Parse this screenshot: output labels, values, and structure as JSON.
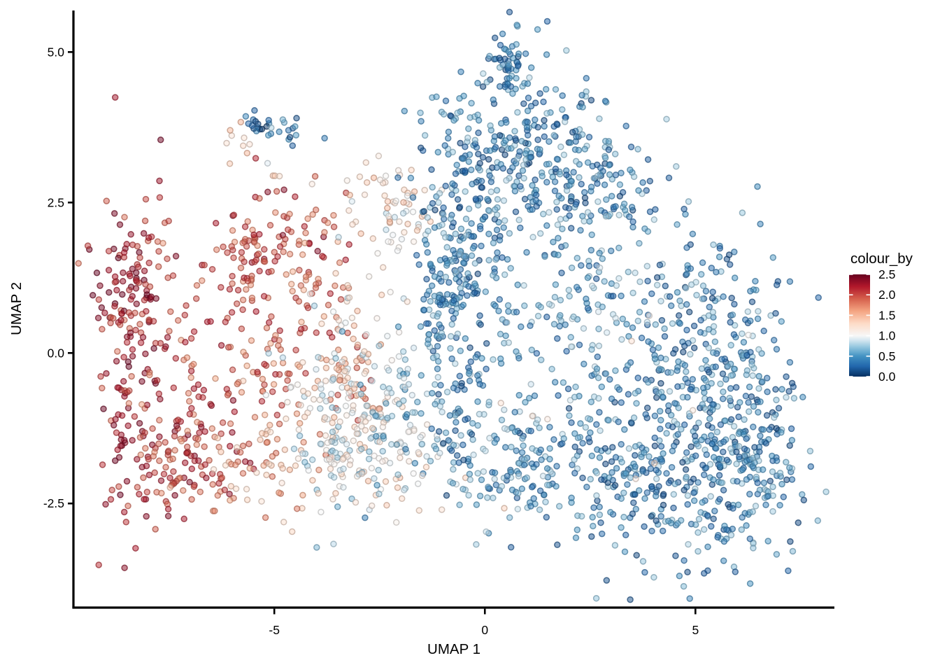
{
  "figure": {
    "background": "#ffffff",
    "plot_type_note": "UMAP dimensionality-reduction scatter plot coloured by continuous expression value"
  },
  "chart_data": {
    "type": "scatter",
    "title": "",
    "xlabel": "UMAP 1",
    "ylabel": "UMAP 2",
    "xlim": [
      -9.77,
      8.3
    ],
    "ylim": [
      -4.23,
      5.69
    ],
    "grid": false,
    "x_ticks": [
      {
        "value": -5,
        "label": "-5"
      },
      {
        "value": 0,
        "label": "0"
      },
      {
        "value": 5,
        "label": "5"
      }
    ],
    "y_ticks": [
      {
        "value": 5.0,
        "label": "5.0"
      },
      {
        "value": 2.5,
        "label": "2.5"
      },
      {
        "value": 0.0,
        "label": "0.0"
      },
      {
        "value": -2.5,
        "label": "-2.5"
      }
    ],
    "legend": {
      "title": "colour_by",
      "position": "right",
      "min": 0.0,
      "max": 2.5,
      "ticks": [
        {
          "value": 2.5,
          "label": "2.5"
        },
        {
          "value": 2.0,
          "label": "2.0"
        },
        {
          "value": 1.5,
          "label": "1.5"
        },
        {
          "value": 1.0,
          "label": "1.0"
        },
        {
          "value": 0.5,
          "label": "0.5"
        },
        {
          "value": 0.0,
          "label": "0.0"
        }
      ]
    },
    "colormap": {
      "name": "RdBu-reversed (high=red, low=blue)",
      "stops": [
        {
          "v": 0.0,
          "c": "#053061"
        },
        {
          "v": 0.25,
          "c": "#2166ac"
        },
        {
          "v": 0.5,
          "c": "#4393c3"
        },
        {
          "v": 0.72,
          "c": "#92c5de"
        },
        {
          "v": 0.88,
          "c": "#d1e5f0"
        },
        {
          "v": 1.0,
          "c": "#f7f7f7"
        },
        {
          "v": 1.3,
          "c": "#fddbc7"
        },
        {
          "v": 1.6,
          "c": "#f4a582"
        },
        {
          "v": 1.9,
          "c": "#d6604d"
        },
        {
          "v": 2.2,
          "c": "#b2182b"
        },
        {
          "v": 2.5,
          "c": "#67001f"
        }
      ]
    },
    "point_style": {
      "radius": 4.0,
      "fill_opacity": 0.5,
      "stroke_opacity": 0.7,
      "stroke_width": 1.5,
      "stroke_darken": 0.75
    },
    "seed": 7,
    "clusters": [
      {
        "name": "red-left-column",
        "n": 130,
        "cx": -8.35,
        "cy": -0.2,
        "sx": 0.5,
        "sy": 1.45,
        "vmin": 1.8,
        "vmax": 2.5
      },
      {
        "name": "red-bottom-arc",
        "n": 115,
        "cx": -7.3,
        "cy": -1.75,
        "sx": 0.85,
        "sy": 0.5,
        "vmin": 1.7,
        "vmax": 2.4
      },
      {
        "name": "red-upper-hook",
        "n": 60,
        "cx": -8.25,
        "cy": 1.3,
        "sx": 0.45,
        "sy": 0.5,
        "vmin": 1.9,
        "vmax": 2.5
      },
      {
        "name": "red-inner",
        "n": 75,
        "cx": -6.9,
        "cy": -0.5,
        "sx": 0.65,
        "sy": 0.85,
        "vmin": 1.6,
        "vmax": 2.3
      },
      {
        "name": "salmon-fringe",
        "n": 60,
        "cx": -5.1,
        "cy": -1.75,
        "sx": 0.75,
        "sy": 0.5,
        "vmin": 1.2,
        "vmax": 1.9
      },
      {
        "name": "red-arc-top",
        "n": 70,
        "cx": -4.9,
        "cy": 2.0,
        "sx": 0.75,
        "sy": 0.4,
        "vmin": 1.7,
        "vmax": 2.4
      },
      {
        "name": "red-arc-left",
        "n": 35,
        "cx": -5.7,
        "cy": 1.35,
        "sx": 0.35,
        "sy": 0.5,
        "vmin": 1.7,
        "vmax": 2.3
      },
      {
        "name": "red-arc-right",
        "n": 40,
        "cx": -3.9,
        "cy": 1.3,
        "sx": 0.4,
        "sy": 0.55,
        "vmin": 1.5,
        "vmax": 2.2
      },
      {
        "name": "red-mid-column",
        "n": 45,
        "cx": -4.95,
        "cy": -0.1,
        "sx": 0.38,
        "sy": 0.6,
        "vmin": 1.5,
        "vmax": 2.2
      },
      {
        "name": "red-knot-mid",
        "n": 40,
        "cx": -3.2,
        "cy": -0.3,
        "sx": 0.35,
        "sy": 0.45,
        "vmin": 1.4,
        "vmax": 2.1
      },
      {
        "name": "pale-top",
        "n": 70,
        "cx": -2.2,
        "cy": 2.35,
        "sx": 0.6,
        "sy": 0.45,
        "vmin": 0.8,
        "vmax": 1.5
      },
      {
        "name": "pale-mid",
        "n": 150,
        "cx": -3.35,
        "cy": -0.65,
        "sx": 0.85,
        "sy": 0.8,
        "vmin": 0.7,
        "vmax": 1.5
      },
      {
        "name": "pale-low",
        "n": 105,
        "cx": -2.9,
        "cy": -1.8,
        "sx": 0.85,
        "sy": 0.45,
        "vmin": 0.6,
        "vmax": 1.4
      },
      {
        "name": "paleblue-right",
        "n": 70,
        "cx": -1.9,
        "cy": -1.1,
        "sx": 0.5,
        "sy": 0.6,
        "vmin": 0.4,
        "vmax": 1.1
      },
      {
        "name": "tiny-blue-knot",
        "n": 16,
        "cx": -5.37,
        "cy": 3.83,
        "sx": 0.22,
        "sy": 0.12,
        "vmin": 0.0,
        "vmax": 0.5
      },
      {
        "name": "tiny-blue-2",
        "n": 14,
        "cx": -4.6,
        "cy": 3.6,
        "sx": 0.3,
        "sy": 0.22,
        "vmin": 0.1,
        "vmax": 0.8
      },
      {
        "name": "tiny-salmon",
        "n": 8,
        "cx": -5.8,
        "cy": 3.5,
        "sx": 0.2,
        "sy": 0.2,
        "vmin": 1.2,
        "vmax": 1.6
      },
      {
        "name": "tiny-stragglers",
        "n": 6,
        "cx": -4.9,
        "cy": 3.0,
        "sx": 0.3,
        "sy": 0.3,
        "vmin": 0.9,
        "vmax": 1.5
      },
      {
        "name": "blue-spike",
        "n": 55,
        "cx": 0.6,
        "cy": 4.8,
        "sx": 0.28,
        "sy": 0.42,
        "vmin": 0.1,
        "vmax": 0.7
      },
      {
        "name": "blue-upper-lobe",
        "n": 250,
        "cx": 0.8,
        "cy": 3.2,
        "sx": 1.0,
        "sy": 0.75,
        "vmin": 0.1,
        "vmax": 0.8
      },
      {
        "name": "blue-left-band",
        "n": 170,
        "cx": -0.45,
        "cy": 2.0,
        "sx": 0.55,
        "sy": 1.0,
        "vmin": 0.1,
        "vmax": 0.8
      },
      {
        "name": "blue-upperright-edge",
        "n": 115,
        "cx": 2.8,
        "cy": 2.8,
        "sx": 0.7,
        "sy": 0.6,
        "vmin": 0.1,
        "vmax": 0.8
      },
      {
        "name": "blue-mid-sparse",
        "n": 170,
        "cx": 1.95,
        "cy": 0.5,
        "sx": 1.3,
        "sy": 0.95,
        "vmin": 0.2,
        "vmax": 0.9
      },
      {
        "name": "blue-right-lobe",
        "n": 250,
        "cx": 5.3,
        "cy": 0.3,
        "sx": 0.95,
        "sy": 0.95,
        "vmin": 0.1,
        "vmax": 0.8
      },
      {
        "name": "blue-bottom-mass",
        "n": 400,
        "cx": 4.3,
        "cy": -2.05,
        "sx": 1.55,
        "sy": 0.8,
        "vmin": 0.1,
        "vmax": 0.8
      },
      {
        "name": "blue-bottomright",
        "n": 130,
        "cx": 6.4,
        "cy": -1.6,
        "sx": 0.55,
        "sy": 0.9,
        "vmin": 0.1,
        "vmax": 0.8
      },
      {
        "name": "blue-bottom-left-tail",
        "n": 120,
        "cx": 0.6,
        "cy": -1.8,
        "sx": 0.8,
        "sy": 0.5,
        "vmin": 0.2,
        "vmax": 0.9
      },
      {
        "name": "blue-left-column-low",
        "n": 75,
        "cx": -0.7,
        "cy": -0.6,
        "sx": 0.35,
        "sy": 0.8,
        "vmin": 0.1,
        "vmax": 0.8
      },
      {
        "name": "blue-knot",
        "n": 65,
        "cx": -0.9,
        "cy": 0.75,
        "sx": 0.3,
        "sy": 0.5,
        "vmin": 0.2,
        "vmax": 0.8
      },
      {
        "name": "pale-outliers-in-blue",
        "n": 10,
        "cx": 3.5,
        "cy": -0.8,
        "sx": 2.2,
        "sy": 1.5,
        "vmin": 1.0,
        "vmax": 1.45
      }
    ]
  }
}
